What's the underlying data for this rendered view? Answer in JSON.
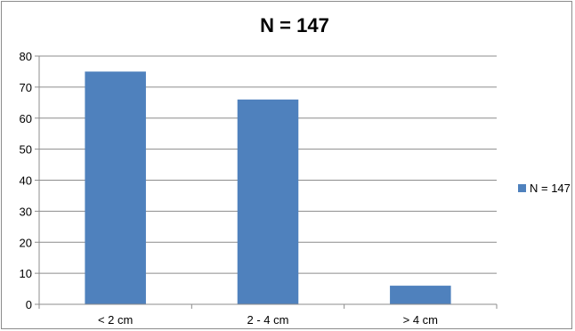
{
  "chart_data": {
    "type": "bar",
    "title": "N = 147",
    "categories": [
      "< 2 cm",
      "2 - 4 cm",
      "> 4 cm"
    ],
    "series": [
      {
        "name": "N = 147",
        "values": [
          75,
          66,
          6
        ],
        "color": "#4f81bd"
      }
    ],
    "ylim": [
      0,
      80
    ],
    "yticks": [
      0,
      10,
      20,
      30,
      40,
      50,
      60,
      70,
      80
    ],
    "xlabel": "",
    "ylabel": "",
    "grid": true,
    "legend_position": "right"
  }
}
